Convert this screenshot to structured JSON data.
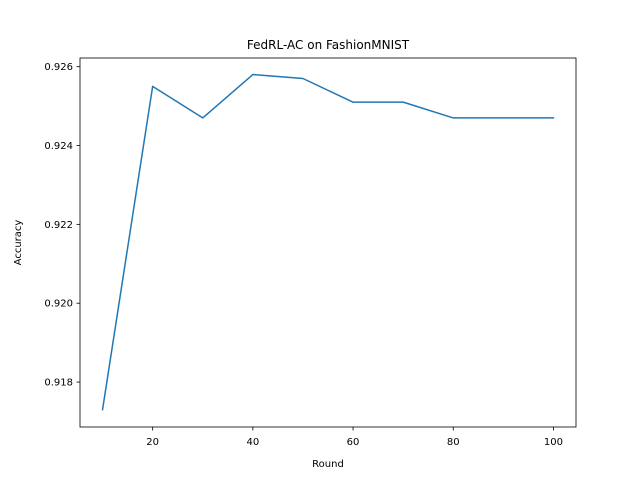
{
  "chart_data": {
    "type": "line",
    "title": "FedRL-AC on FashionMNIST",
    "xlabel": "Round",
    "ylabel": "Accuracy",
    "x": [
      10,
      20,
      30,
      40,
      50,
      60,
      70,
      80,
      90,
      100
    ],
    "series": [
      {
        "values": [
          0.9173,
          0.9255,
          0.9247,
          0.9258,
          0.9257,
          0.9251,
          0.9251,
          0.9247,
          0.9247,
          0.9247
        ],
        "color": "#1f77b4"
      }
    ],
    "xlim": [
      5.5,
      104.5
    ],
    "ylim": [
      0.91686,
      0.92622
    ],
    "xticks": [
      20,
      40,
      60,
      80,
      100
    ],
    "xtick_labels": [
      "20",
      "40",
      "60",
      "80",
      "100"
    ],
    "yticks": [
      0.918,
      0.92,
      0.922,
      0.924,
      0.926
    ],
    "ytick_labels": [
      "0.918",
      "0.920",
      "0.922",
      "0.924",
      "0.926"
    ],
    "grid": false,
    "legend": "none"
  }
}
